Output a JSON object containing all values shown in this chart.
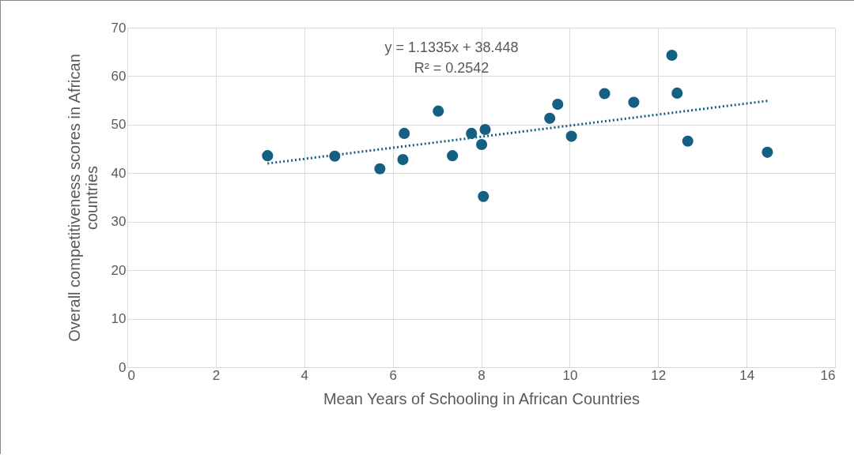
{
  "chart_data": {
    "type": "scatter",
    "xlabel": "Mean Years of Schooling in African Countries",
    "ylabel": "Overall competitiveness scores in African countries",
    "xlim": [
      0,
      16
    ],
    "xticks": [
      0,
      2,
      4,
      6,
      8,
      10,
      12,
      14,
      16
    ],
    "ylim": [
      0,
      70
    ],
    "yticks": [
      0,
      10,
      20,
      30,
      40,
      50,
      60,
      70
    ],
    "grid": true,
    "marker": "circle",
    "annotations": [
      "y = 1.1335x + 38.448",
      "R² = 0.2542"
    ],
    "series": [
      {
        "color": "#156082",
        "x": [
          3.17,
          4.69,
          5.71,
          6.23,
          6.26,
          7.03,
          7.35,
          7.78,
          8.01,
          8.09,
          8.05,
          9.55,
          9.73,
          10.04,
          10.79,
          11.45,
          12.31,
          12.43,
          12.67,
          14.47
        ],
        "values": [
          43.6,
          43.5,
          40.9,
          42.8,
          48.2,
          52.8,
          43.6,
          48.2,
          45.9,
          49.0,
          35.2,
          51.3,
          54.2,
          47.6,
          56.4,
          54.6,
          64.3,
          56.5,
          46.6,
          44.3
        ]
      },
      {
        "type": "line",
        "color": "#156082",
        "line_style": "dotted",
        "marker": "none",
        "x": [
          3.17,
          14.47
        ],
        "values": [
          42.0,
          54.9
        ]
      }
    ]
  }
}
